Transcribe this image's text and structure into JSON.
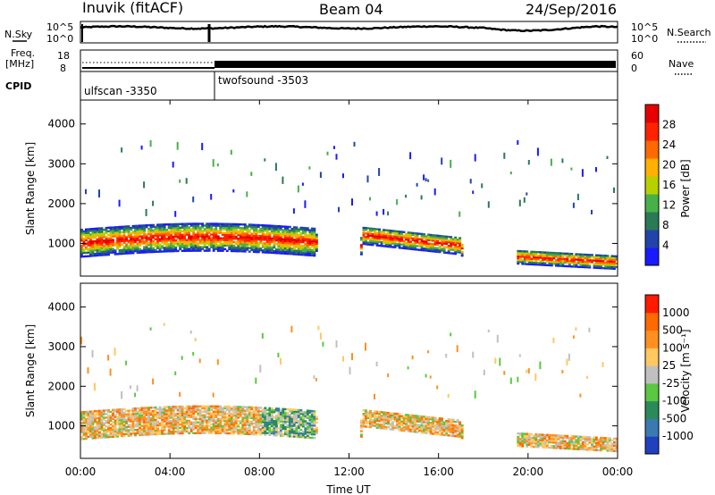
{
  "header": {
    "station": "Inuvik (fitACF)",
    "beam": "Beam 04",
    "date": "24/Sep/2016"
  },
  "strip": {
    "nsky_label": "N.Sky",
    "nsky_ticks": [
      "10^5",
      "10^0"
    ],
    "nsearch_label": "N.Search",
    "nsearch_ticks": [
      "10^5",
      "10^0"
    ],
    "freq_label_line1": "Freq.",
    "freq_label_line2": "[MHz]",
    "freq_ticks": [
      "18",
      "8"
    ],
    "nave_label": "Nave",
    "nave_ticks": [
      "60",
      "0"
    ],
    "cpid_label": "CPID",
    "cpid_segments": [
      {
        "name": "ulfscan -3350",
        "start_hour": 0
      },
      {
        "name": "twofsound -3503",
        "start_hour": 6
      }
    ]
  },
  "chart_data": [
    {
      "type": "heatmap",
      "title": "",
      "quantity": "Power",
      "ylabel": "Slant Range [km]",
      "xlabel": "",
      "xlim": [
        0,
        24
      ],
      "ylim": [
        180,
        4600
      ],
      "yticks": [
        "1000",
        "2000",
        "3000",
        "4000"
      ],
      "yticks_values": [
        1000,
        2000,
        3000,
        4000
      ],
      "colorbar_label": "Power [dB]",
      "colorbar_ticks": [
        "28",
        "24",
        "20",
        "16",
        "12",
        "8",
        "4"
      ],
      "colorbar_range": [
        0,
        30
      ],
      "colors": [
        "#1a1aff",
        "#2244aa",
        "#2a7a55",
        "#48b048",
        "#b8d000",
        "#ffb000",
        "#ff6a00",
        "#ff2200",
        "#e80000"
      ]
    },
    {
      "type": "heatmap",
      "title": "",
      "quantity": "Velocity",
      "ylabel": "Slant Range [km]",
      "xlabel": "Time UT",
      "xlim": [
        0,
        24
      ],
      "ylim": [
        180,
        4600
      ],
      "yticks": [
        "1000",
        "2000",
        "3000",
        "4000"
      ],
      "yticks_values": [
        1000,
        2000,
        3000,
        4000
      ],
      "xticks": [
        "00:00",
        "04:00",
        "08:00",
        "12:00",
        "16:00",
        "20:00",
        "00:00"
      ],
      "colorbar_label": "Velocity [m s⁻¹]",
      "colorbar_ticks": [
        "1000",
        "500",
        "100",
        "25",
        "-25",
        "-100",
        "-500",
        "-1000"
      ],
      "colors": [
        "#2040c0",
        "#3a7ab0",
        "#2a8a5a",
        "#5ac840",
        "#c0c0c0",
        "#ffc860",
        "#ff9020",
        "#ff6a00",
        "#ff1a00"
      ]
    }
  ]
}
